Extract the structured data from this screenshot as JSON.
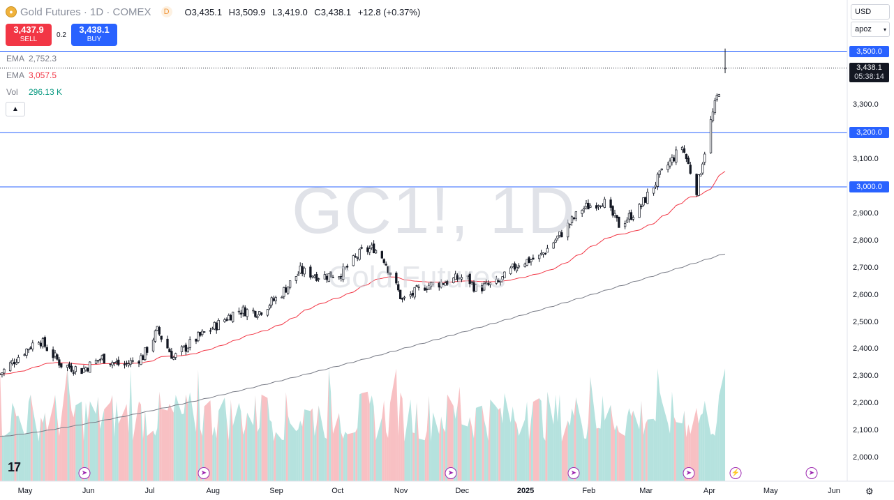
{
  "header": {
    "symbol_title": "Gold Futures · 1D · COMEX",
    "interval_badge": "D",
    "ohlc": {
      "o_label": "O",
      "o_value": "3,435.1",
      "h_label": "H",
      "h_value": "3,509.9",
      "l_label": "L",
      "l_value": "3,419.0",
      "c_label": "C",
      "c_value": "3,438.1",
      "change": "+12.8 (+0.37%)"
    }
  },
  "trade": {
    "sell_price": "3,437.9",
    "sell_label": "SELL",
    "spread": "0.2",
    "buy_price": "3,438.1",
    "buy_label": "BUY"
  },
  "indicators": [
    {
      "name": "EMA",
      "value": "2,752.3",
      "color": "#787b86"
    },
    {
      "name": "EMA",
      "value": "3,057.5",
      "color": "#f23645"
    },
    {
      "name": "Vol",
      "value": "296.13 K",
      "color": "#089981"
    }
  ],
  "toolbar": {
    "currency": "USD",
    "scale_mode": "apoz"
  },
  "price_axis": {
    "labels": [
      "3,300.0",
      "3,100.0",
      "2,900.0",
      "2,800.0",
      "2,700.0",
      "2,600.0",
      "2,500.0",
      "2,400.0",
      "2,300.0",
      "2,200.0",
      "2,100.0",
      "2,000.0"
    ],
    "horizontal_levels": [
      "3,500.0",
      "3,200.0",
      "3,000.0"
    ],
    "last_price": "3,438.1",
    "countdown": "05:38:14"
  },
  "time_axis": [
    "May",
    "Jun",
    "Jul",
    "Aug",
    "Sep",
    "Oct",
    "Nov",
    "Dec",
    "2025",
    "Feb",
    "Mar",
    "Apr",
    "May",
    "Jun"
  ],
  "watermark": {
    "main": "GC1!, 1D",
    "sub": "Gold Futures"
  },
  "branding": {
    "logo": "17"
  },
  "colors": {
    "up": "#089981",
    "down": "#f23645",
    "level": "#2962ff",
    "ema_fast": "#f23645",
    "ema_slow": "#787b86",
    "vol_up": "#a8ddd8",
    "vol_down": "#f7b5b9"
  },
  "chart_data": {
    "type": "candlestick",
    "symbol": "GC1!",
    "interval": "1D",
    "ylim": [
      1960,
      3560
    ],
    "x_start": "2024-05-01",
    "x_end": "2025-06-15",
    "close_series": [
      [
        "2024-05-01",
        2310
      ],
      [
        "2024-05-10",
        2375
      ],
      [
        "2024-05-20",
        2440
      ],
      [
        "2024-05-31",
        2345
      ],
      [
        "2024-06-10",
        2325
      ],
      [
        "2024-06-20",
        2370
      ],
      [
        "2024-06-30",
        2340
      ],
      [
        "2024-07-10",
        2375
      ],
      [
        "2024-07-17",
        2470
      ],
      [
        "2024-07-25",
        2370
      ],
      [
        "2024-08-05",
        2440
      ],
      [
        "2024-08-15",
        2490
      ],
      [
        "2024-08-25",
        2545
      ],
      [
        "2024-09-05",
        2540
      ],
      [
        "2024-09-15",
        2600
      ],
      [
        "2024-09-25",
        2690
      ],
      [
        "2024-10-05",
        2670
      ],
      [
        "2024-10-15",
        2680
      ],
      [
        "2024-10-25",
        2760
      ],
      [
        "2024-10-31",
        2775
      ],
      [
        "2024-11-05",
        2735
      ],
      [
        "2024-11-14",
        2580
      ],
      [
        "2024-11-25",
        2635
      ],
      [
        "2024-12-05",
        2650
      ],
      [
        "2024-12-15",
        2670
      ],
      [
        "2024-12-20",
        2625
      ],
      [
        "2024-12-31",
        2645
      ],
      [
        "2025-01-10",
        2720
      ],
      [
        "2025-01-20",
        2740
      ],
      [
        "2025-01-31",
        2830
      ],
      [
        "2025-02-10",
        2920
      ],
      [
        "2025-02-20",
        2950
      ],
      [
        "2025-02-28",
        2860
      ],
      [
        "2025-03-10",
        2920
      ],
      [
        "2025-03-20",
        3040
      ],
      [
        "2025-03-31",
        3150
      ],
      [
        "2025-04-07",
        2990
      ],
      [
        "2025-04-14",
        3240
      ],
      [
        "2025-04-17",
        3330
      ],
      [
        "2025-04-21",
        3438.1
      ]
    ],
    "ema_fast": {
      "label": "EMA",
      "value": 3057.5
    },
    "ema_slow": {
      "label": "EMA",
      "value": 2752.3
    },
    "volume": {
      "label": "Vol",
      "value": "296.13 K"
    },
    "horizontal_levels": [
      3500,
      3200,
      3000
    ],
    "last": {
      "open": 3435.1,
      "high": 3509.9,
      "low": 3419.0,
      "close": 3438.1,
      "change": 12.8,
      "change_pct": 0.37
    }
  }
}
